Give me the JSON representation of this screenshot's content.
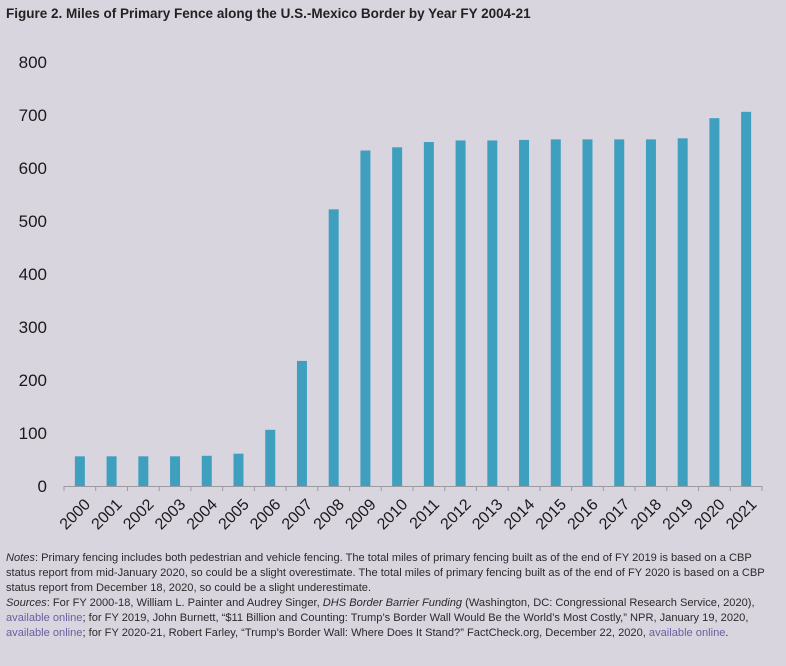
{
  "figure": {
    "title": "Figure 2. Miles of Primary Fence along the U.S.-Mexico Border by Year FY 2004-21"
  },
  "chart_data": {
    "type": "bar",
    "title": "Figure 2. Miles of Primary Fence along the U.S.-Mexico Border by Year FY 2004-21",
    "xlabel": "",
    "ylabel": "",
    "ylim": [
      0,
      800
    ],
    "yticks": [
      0,
      100,
      200,
      300,
      400,
      500,
      600,
      700,
      800
    ],
    "grid": false,
    "bar_color": "#3f9fbf",
    "categories": [
      "2000",
      "2001",
      "2002",
      "2003",
      "2004",
      "2005",
      "2006",
      "2007",
      "2008",
      "2009",
      "2010",
      "2011",
      "2012",
      "2013",
      "2014",
      "2015",
      "2016",
      "2017",
      "2018",
      "2019",
      "2020",
      "2021"
    ],
    "values": [
      56,
      56,
      56,
      56,
      57,
      61,
      106,
      236,
      522,
      633,
      639,
      649,
      652,
      652,
      653,
      654,
      654,
      654,
      654,
      656,
      694,
      706
    ]
  },
  "notes": {
    "label": "Notes",
    "text": ": Primary fencing includes both pedestrian and vehicle fencing. The total miles of primary fencing built as of the end of FY 2019 is based on a CBP status report from mid-January 2020, so could be a slight overestimate. The total miles of primary fencing built as of the end of FY 2020 is based on a CBP status report from December 18, 2020, so could be a slight underestimate."
  },
  "sources": {
    "label": "Sources",
    "part1": ": For FY 2000-18, William L. Painter and Audrey Singer, ",
    "book_title": "DHS Border Barrier Funding",
    "part2": " (Washington, DC: Congressional Research Service, 2020), ",
    "link1": "available online",
    "part3": "; for FY 2019, John Burnett, “$11 Billion and Counting: Trump’s Border Wall Would Be the World’s Most Costly,” NPR, January 19, 2020, ",
    "link2": "available online",
    "part4": "; for FY 2020-21, Robert Farley, “Trump’s Border Wall: Where Does It Stand?” FactCheck.org, December 22, 2020, ",
    "link3": "available online",
    "part5": "."
  }
}
